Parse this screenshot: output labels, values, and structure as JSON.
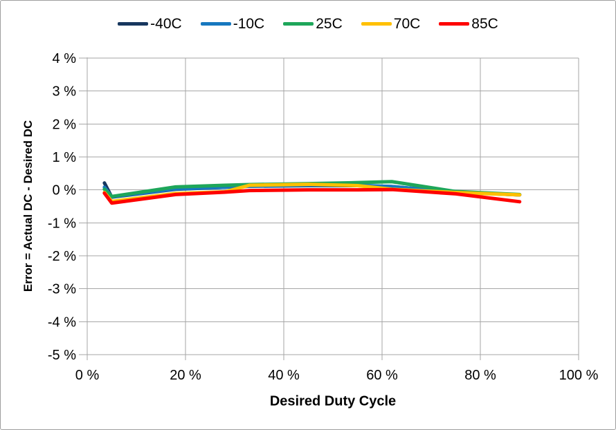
{
  "chart_data": {
    "type": "line",
    "title": "",
    "xlabel": "Desired Duty Cycle",
    "ylabel": "Error = Actual DC - Desired DC",
    "legend_position": "top",
    "grid": true,
    "x_axis": {
      "min": 0,
      "max": 100,
      "tick_values": [
        0,
        20,
        40,
        60,
        80,
        100
      ],
      "tick_labels": [
        "0 %",
        "20 %",
        "40 %",
        "60 %",
        "80 %",
        "100 %"
      ]
    },
    "y_axis": {
      "min": -5,
      "max": 4,
      "tick_values": [
        4,
        3,
        2,
        1,
        0,
        -1,
        -2,
        -3,
        -4,
        -5
      ],
      "tick_labels": [
        "4 %",
        "3 %",
        "2 %",
        "1 %",
        "0 %",
        "-1 %",
        "-2 %",
        "-3 %",
        "-4 %",
        "-5 %"
      ]
    },
    "x": [
      3.5,
      5,
      18,
      28,
      33,
      45,
      55,
      62,
      75,
      88
    ],
    "series": [
      {
        "name": "-40C",
        "color": "#17375e",
        "values": [
          0.21,
          -0.22,
          0.02,
          0.08,
          0.11,
          0.13,
          0.13,
          0.1,
          -0.07,
          -0.15
        ]
      },
      {
        "name": "-10C",
        "color": "#1678bf",
        "values": [
          0.08,
          -0.21,
          0.03,
          0.08,
          0.11,
          0.14,
          0.14,
          0.1,
          -0.07,
          -0.15
        ]
      },
      {
        "name": "25C",
        "color": "#1ea65a",
        "values": [
          0.02,
          -0.2,
          0.09,
          0.14,
          0.16,
          0.19,
          0.22,
          0.25,
          -0.05,
          -0.14
        ]
      },
      {
        "name": "70C",
        "color": "#ffc000",
        "values": [
          -0.08,
          -0.35,
          -0.11,
          -0.06,
          0.14,
          0.17,
          0.13,
          0.02,
          -0.08,
          -0.15
        ]
      },
      {
        "name": "85C",
        "color": "#fe0000",
        "values": [
          -0.1,
          -0.4,
          -0.14,
          -0.07,
          -0.02,
          0.0,
          0.0,
          0.01,
          -0.12,
          -0.36
        ]
      }
    ],
    "style": {
      "grid_color": "#a6a6a6",
      "axis_color": "#a6a6a6",
      "line_width": 5
    }
  }
}
